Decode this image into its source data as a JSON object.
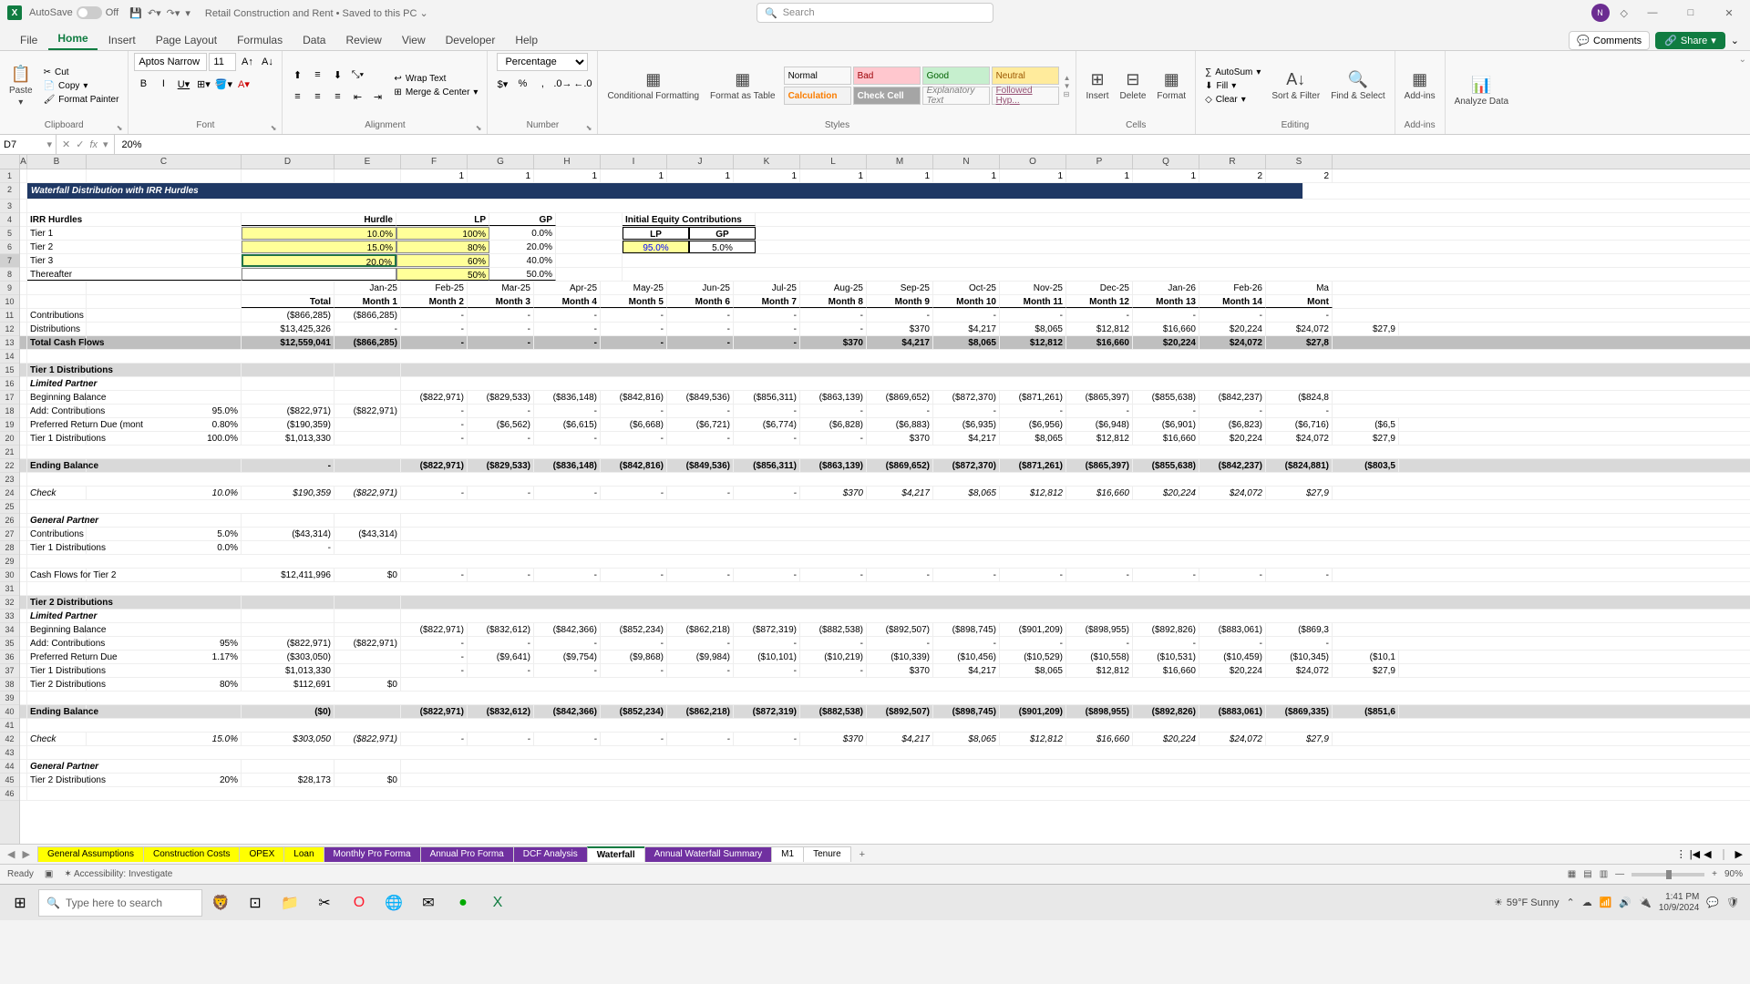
{
  "titlebar": {
    "autosave_label": "AutoSave",
    "autosave_state": "Off",
    "docname": "Retail Construction and Rent • Saved to this PC ⌄",
    "search_placeholder": "Search"
  },
  "avatar_initials": "N",
  "tabs": [
    "File",
    "Home",
    "Insert",
    "Page Layout",
    "Formulas",
    "Data",
    "Review",
    "View",
    "Developer",
    "Help"
  ],
  "active_tab": "Home",
  "comments_btn": "Comments",
  "share_btn": "Share",
  "ribbon": {
    "clipboard": {
      "paste": "Paste",
      "cut": "Cut",
      "copy": "Copy",
      "fp": "Format Painter",
      "label": "Clipboard"
    },
    "font": {
      "name": "Aptos Narrow",
      "size": "11",
      "label": "Font"
    },
    "align": {
      "wrap": "Wrap Text",
      "merge": "Merge & Center",
      "label": "Alignment"
    },
    "number": {
      "fmt": "Percentage",
      "label": "Number"
    },
    "styles": {
      "cf": "Conditional Formatting",
      "fat": "Format as Table",
      "normal": "Normal",
      "bad": "Bad",
      "good": "Good",
      "neutral": "Neutral",
      "calc": "Calculation",
      "check": "Check Cell",
      "expl": "Explanatory Text",
      "hyp": "Followed Hyp...",
      "label": "Styles",
      "colors": {
        "bad_bg": "#ffc7ce",
        "bad_fg": "#9c0006",
        "good_bg": "#c6efce",
        "good_fg": "#006100",
        "neutral_bg": "#ffeb9c",
        "neutral_fg": "#9c5700",
        "calc_bg": "#f2f2f2",
        "calc_fg": "#fa7d00",
        "check_bg": "#a5a5a5",
        "check_fg": "#ffffff"
      }
    },
    "cells": {
      "ins": "Insert",
      "del": "Delete",
      "fmt": "Format",
      "label": "Cells"
    },
    "editing": {
      "sum": "AutoSum",
      "fill": "Fill",
      "clear": "Clear",
      "sort": "Sort & Filter",
      "find": "Find & Select",
      "label": "Editing"
    },
    "addins": {
      "addins": "Add-ins",
      "label": "Add-ins"
    },
    "analyze": {
      "ad": "Analyze Data"
    }
  },
  "fbar": {
    "ref": "D7",
    "val": "20%"
  },
  "colheads": [
    "A",
    "B",
    "C",
    "D",
    "E",
    "F",
    "G",
    "H",
    "I",
    "J",
    "K",
    "L",
    "M",
    "N",
    "O",
    "P",
    "Q",
    "R",
    "S"
  ],
  "row1": [
    "1",
    "1",
    "1",
    "1",
    "1",
    "1",
    "1",
    "1",
    "1",
    "1",
    "1",
    "1",
    "2",
    "2"
  ],
  "sheet": {
    "title": "Waterfall Distribution with IRR Hurdles",
    "irr_label": "IRR Hurdles",
    "hurdle": "Hurdle",
    "lp": "LP",
    "gp": "GP",
    "iec": "Initial Equity Contributions",
    "lp2": "LP",
    "gp2": "GP",
    "tiers": [
      {
        "n": "Tier 1",
        "h": "10.0%",
        "lp": "100%",
        "gp": "0.0%"
      },
      {
        "n": "Tier 2",
        "h": "15.0%",
        "lp": "80%",
        "gp": "20.0%"
      },
      {
        "n": "Tier 3",
        "h": "20.0%",
        "lp": "60%",
        "gp": "40.0%"
      },
      {
        "n": "Thereafter",
        "h": "",
        "lp": "50%",
        "gp": "50.0%"
      }
    ],
    "ec": {
      "lp": "95.0%",
      "gp": "5.0%"
    },
    "dates": [
      "Jan-25",
      "Feb-25",
      "Mar-25",
      "Apr-25",
      "May-25",
      "Jun-25",
      "Jul-25",
      "Aug-25",
      "Sep-25",
      "Oct-25",
      "Nov-25",
      "Dec-25",
      "Jan-26",
      "Feb-26",
      "Ma"
    ],
    "months": [
      "Total",
      "Month 1",
      "Month 2",
      "Month 3",
      "Month 4",
      "Month 5",
      "Month 6",
      "Month 7",
      "Month 8",
      "Month 9",
      "Month 10",
      "Month 11",
      "Month 12",
      "Month 13",
      "Month 14",
      "Mont"
    ],
    "r": {
      "contrib": {
        "l": "Contributions",
        "t": "($866,285)",
        "m1": "($866,285)"
      },
      "dist": {
        "l": "Distributions",
        "t": "$13,425,326",
        "v": [
          "-",
          "-",
          "-",
          "-",
          "-",
          "-",
          "-",
          "$370",
          "$4,217",
          "$8,065",
          "$12,812",
          "$16,660",
          "$20,224",
          "$24,072",
          "$27,9"
        ]
      },
      "tcf": {
        "l": "Total Cash Flows",
        "t": "$12,559,041",
        "m1": "($866,285)",
        "v": [
          "-",
          "-",
          "-",
          "-",
          "-",
          "-",
          "$370",
          "$4,217",
          "$8,065",
          "$12,812",
          "$16,660",
          "$20,224",
          "$24,072",
          "$27,8"
        ]
      },
      "t1d": "Tier 1 Distributions",
      "lpart": "Limited Partner",
      "bb": {
        "l": "Beginning Balance",
        "v": [
          "($822,971)",
          "($829,533)",
          "($836,148)",
          "($842,816)",
          "($849,536)",
          "($856,311)",
          "($863,139)",
          "($869,652)",
          "($872,370)",
          "($871,261)",
          "($865,397)",
          "($855,638)",
          "($842,237)",
          "($824,8"
        ]
      },
      "addc": {
        "l": "Add: Contributions",
        "p": "95.0%",
        "t": "($822,971)",
        "m1": "($822,971)"
      },
      "prd": {
        "l": "Preferred Return Due (mont",
        "p": "0.80%",
        "t": "($190,359)",
        "v": [
          "-",
          "($6,562)",
          "($6,615)",
          "($6,668)",
          "($6,721)",
          "($6,774)",
          "($6,828)",
          "($6,883)",
          "($6,935)",
          "($6,956)",
          "($6,948)",
          "($6,901)",
          "($6,823)",
          "($6,716)",
          "($6,5"
        ]
      },
      "t1dist": {
        "l": "Tier 1 Distributions",
        "p": "100.0%",
        "t": "$1,013,330",
        "v": [
          "-",
          "-",
          "-",
          "-",
          "-",
          "-",
          "-",
          "$370",
          "$4,217",
          "$8,065",
          "$12,812",
          "$16,660",
          "$20,224",
          "$24,072",
          "$27,9"
        ]
      },
      "eb": {
        "l": "Ending Balance",
        "t": "-",
        "v": [
          "($822,971)",
          "($829,533)",
          "($836,148)",
          "($842,816)",
          "($849,536)",
          "($856,311)",
          "($863,139)",
          "($869,652)",
          "($872,370)",
          "($871,261)",
          "($865,397)",
          "($855,638)",
          "($842,237)",
          "($824,881)",
          "($803,5"
        ]
      },
      "chk": {
        "l": "Check",
        "p": "10.0%",
        "t": "$190,359",
        "m1": "($822,971)",
        "v": [
          "-",
          "-",
          "-",
          "-",
          "-",
          "-",
          "$370",
          "$4,217",
          "$8,065",
          "$12,812",
          "$16,660",
          "$20,224",
          "$24,072",
          "$27,9"
        ]
      },
      "gp": "General Partner",
      "gpc": {
        "l": "Contributions",
        "p": "5.0%",
        "t": "($43,314)",
        "m1": "($43,314)"
      },
      "gpt1": {
        "l": "Tier 1 Distributions",
        "p": "0.0%",
        "t": "-"
      },
      "cft2": {
        "l": "Cash Flows for Tier 2",
        "t": "$12,411,996",
        "m1": "$0",
        "v": [
          "-",
          "-",
          "-",
          "-",
          "-",
          "-",
          "-",
          "-",
          "-",
          "-",
          "-",
          "-",
          "-",
          "-"
        ]
      },
      "t2d": "Tier 2 Distributions",
      "bb2": {
        "l": "Beginning Balance",
        "v": [
          "($822,971)",
          "($832,612)",
          "($842,366)",
          "($852,234)",
          "($862,218)",
          "($872,319)",
          "($882,538)",
          "($892,507)",
          "($898,745)",
          "($901,209)",
          "($898,955)",
          "($892,826)",
          "($883,061)",
          "($869,3"
        ]
      },
      "addc2": {
        "l": "Add: Contributions",
        "p": "95%",
        "t": "($822,971)",
        "m1": "($822,971)"
      },
      "prd2": {
        "l": "Preferred Return Due",
        "p": "1.17%",
        "t": "($303,050)",
        "v": [
          "-",
          "($9,641)",
          "($9,754)",
          "($9,868)",
          "($9,984)",
          "($10,101)",
          "($10,219)",
          "($10,339)",
          "($10,456)",
          "($10,529)",
          "($10,558)",
          "($10,531)",
          "($10,459)",
          "($10,345)",
          "($10,1"
        ]
      },
      "t1d2": {
        "l": "Tier 1 Distributions",
        "t": "$1,013,330",
        "v": [
          "-",
          "-",
          "-",
          "-",
          "-",
          "-",
          "-",
          "$370",
          "$4,217",
          "$8,065",
          "$12,812",
          "$16,660",
          "$20,224",
          "$24,072",
          "$27,9"
        ]
      },
      "t2dist": {
        "l": "Tier 2 Distributions",
        "p": "80%",
        "t": "$112,691",
        "m1": "$0"
      },
      "eb2": {
        "l": "Ending Balance",
        "t": "($0)",
        "v": [
          "($822,971)",
          "($832,612)",
          "($842,366)",
          "($852,234)",
          "($862,218)",
          "($872,319)",
          "($882,538)",
          "($892,507)",
          "($898,745)",
          "($901,209)",
          "($898,955)",
          "($892,826)",
          "($883,061)",
          "($869,335)",
          "($851,6"
        ]
      },
      "chk2": {
        "l": "Check",
        "p": "15.0%",
        "t": "$303,050",
        "m1": "($822,971)",
        "v": [
          "-",
          "-",
          "-",
          "-",
          "-",
          "-",
          "$370",
          "$4,217",
          "$8,065",
          "$12,812",
          "$16,660",
          "$20,224",
          "$24,072",
          "$27,9"
        ]
      },
      "gpt2": {
        "l": "Tier 2 Distributions",
        "p": "20%",
        "t": "$28,173",
        "m1": "$0"
      }
    }
  },
  "sheets": [
    {
      "n": "General Assumptions",
      "c": "#ffff00"
    },
    {
      "n": "Construction Costs",
      "c": "#ffff00"
    },
    {
      "n": "OPEX",
      "c": "#ffff00"
    },
    {
      "n": "Loan",
      "c": "#ffff00"
    },
    {
      "n": "Monthly Pro Forma",
      "c": "#7030a0",
      "fg": "#fff"
    },
    {
      "n": "Annual Pro Forma",
      "c": "#7030a0",
      "fg": "#fff"
    },
    {
      "n": "DCF Analysis",
      "c": "#7030a0",
      "fg": "#fff"
    },
    {
      "n": "Waterfall",
      "c": "#ffffff",
      "active": true
    },
    {
      "n": "Annual Waterfall Summary",
      "c": "#7030a0",
      "fg": "#fff"
    },
    {
      "n": "M1",
      "c": "#fff"
    },
    {
      "n": "Tenure",
      "c": "#fff"
    }
  ],
  "status": {
    "ready": "Ready",
    "acc": "Accessibility: Investigate",
    "zoom": "90%"
  },
  "taskbar": {
    "search": "Type here to search",
    "weather": "59°F  Sunny",
    "time": "1:41 PM",
    "date": "10/9/2024"
  }
}
